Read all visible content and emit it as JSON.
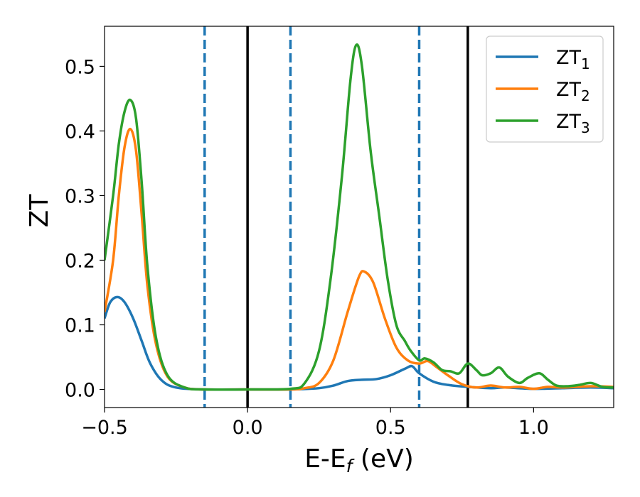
{
  "chart_data": {
    "type": "line",
    "title": "",
    "xlabel": "E-E",
    "xlabel_subscript": "f",
    "xlabel_unit": " (eV)",
    "ylabel": "ZT",
    "xlim": [
      -0.5,
      1.28
    ],
    "ylim": [
      -0.028,
      0.562
    ],
    "grid": false,
    "legend_position": "top-right",
    "x_ticks": [
      {
        "value": -0.5,
        "label": "−0.5"
      },
      {
        "value": 0.0,
        "label": "0.0"
      },
      {
        "value": 0.5,
        "label": "0.5"
      },
      {
        "value": 1.0,
        "label": "1.0"
      }
    ],
    "y_ticks": [
      {
        "value": 0.0,
        "label": "0.0"
      },
      {
        "value": 0.1,
        "label": "0.1"
      },
      {
        "value": 0.2,
        "label": "0.2"
      },
      {
        "value": 0.3,
        "label": "0.3"
      },
      {
        "value": 0.4,
        "label": "0.4"
      },
      {
        "value": 0.5,
        "label": "0.5"
      }
    ],
    "vlines": [
      {
        "x": -0.15,
        "style": "dashed",
        "color": "#1f77b4"
      },
      {
        "x": 0.0,
        "style": "solid",
        "color": "#000000"
      },
      {
        "x": 0.15,
        "style": "dashed",
        "color": "#1f77b4"
      },
      {
        "x": 0.6,
        "style": "dashed",
        "color": "#1f77b4"
      },
      {
        "x": 0.77,
        "style": "solid",
        "color": "#000000"
      }
    ],
    "series": [
      {
        "name": "ZT",
        "subscript": "1",
        "color": "#1f77b4",
        "points": [
          [
            -0.5,
            0.11
          ],
          [
            -0.48,
            0.135
          ],
          [
            -0.455,
            0.143
          ],
          [
            -0.43,
            0.135
          ],
          [
            -0.4,
            0.11
          ],
          [
            -0.37,
            0.075
          ],
          [
            -0.34,
            0.04
          ],
          [
            -0.3,
            0.014
          ],
          [
            -0.25,
            0.003
          ],
          [
            -0.15,
            0.0
          ],
          [
            0.0,
            0.0
          ],
          [
            0.15,
            0.0
          ],
          [
            0.25,
            0.002
          ],
          [
            0.3,
            0.006
          ],
          [
            0.35,
            0.013
          ],
          [
            0.4,
            0.015
          ],
          [
            0.45,
            0.016
          ],
          [
            0.5,
            0.022
          ],
          [
            0.55,
            0.032
          ],
          [
            0.575,
            0.036
          ],
          [
            0.6,
            0.025
          ],
          [
            0.65,
            0.012
          ],
          [
            0.7,
            0.007
          ],
          [
            0.77,
            0.004
          ],
          [
            0.85,
            0.002
          ],
          [
            0.9,
            0.003
          ],
          [
            1.0,
            0.001
          ],
          [
            1.1,
            0.002
          ],
          [
            1.2,
            0.003
          ],
          [
            1.28,
            0.002
          ]
        ]
      },
      {
        "name": "ZT",
        "subscript": "2",
        "color": "#ff7f0e",
        "points": [
          [
            -0.5,
            0.12
          ],
          [
            -0.47,
            0.2
          ],
          [
            -0.45,
            0.3
          ],
          [
            -0.43,
            0.375
          ],
          [
            -0.41,
            0.403
          ],
          [
            -0.39,
            0.37
          ],
          [
            -0.37,
            0.27
          ],
          [
            -0.35,
            0.16
          ],
          [
            -0.32,
            0.07
          ],
          [
            -0.28,
            0.02
          ],
          [
            -0.22,
            0.003
          ],
          [
            -0.15,
            0.0
          ],
          [
            0.0,
            0.0
          ],
          [
            0.15,
            0.0
          ],
          [
            0.2,
            0.002
          ],
          [
            0.25,
            0.01
          ],
          [
            0.3,
            0.045
          ],
          [
            0.35,
            0.12
          ],
          [
            0.39,
            0.175
          ],
          [
            0.41,
            0.182
          ],
          [
            0.44,
            0.165
          ],
          [
            0.48,
            0.11
          ],
          [
            0.52,
            0.065
          ],
          [
            0.56,
            0.045
          ],
          [
            0.6,
            0.04
          ],
          [
            0.63,
            0.044
          ],
          [
            0.66,
            0.035
          ],
          [
            0.7,
            0.022
          ],
          [
            0.75,
            0.008
          ],
          [
            0.8,
            0.003
          ],
          [
            0.85,
            0.006
          ],
          [
            0.9,
            0.003
          ],
          [
            0.95,
            0.004
          ],
          [
            1.0,
            0.001
          ],
          [
            1.05,
            0.004
          ],
          [
            1.1,
            0.003
          ],
          [
            1.2,
            0.005
          ],
          [
            1.28,
            0.004
          ]
        ]
      },
      {
        "name": "ZT",
        "subscript": "3",
        "color": "#2ca02c",
        "points": [
          [
            -0.5,
            0.2
          ],
          [
            -0.47,
            0.3
          ],
          [
            -0.45,
            0.38
          ],
          [
            -0.43,
            0.43
          ],
          [
            -0.41,
            0.448
          ],
          [
            -0.39,
            0.42
          ],
          [
            -0.37,
            0.32
          ],
          [
            -0.35,
            0.19
          ],
          [
            -0.32,
            0.08
          ],
          [
            -0.28,
            0.022
          ],
          [
            -0.22,
            0.003
          ],
          [
            -0.15,
            0.0
          ],
          [
            0.0,
            0.0
          ],
          [
            0.15,
            0.001
          ],
          [
            0.2,
            0.01
          ],
          [
            0.25,
            0.06
          ],
          [
            0.29,
            0.17
          ],
          [
            0.33,
            0.33
          ],
          [
            0.36,
            0.48
          ],
          [
            0.38,
            0.533
          ],
          [
            0.4,
            0.5
          ],
          [
            0.43,
            0.37
          ],
          [
            0.46,
            0.27
          ],
          [
            0.49,
            0.17
          ],
          [
            0.52,
            0.1
          ],
          [
            0.55,
            0.075
          ],
          [
            0.57,
            0.06
          ],
          [
            0.6,
            0.045
          ],
          [
            0.62,
            0.048
          ],
          [
            0.65,
            0.042
          ],
          [
            0.68,
            0.03
          ],
          [
            0.71,
            0.028
          ],
          [
            0.74,
            0.025
          ],
          [
            0.77,
            0.04
          ],
          [
            0.8,
            0.03
          ],
          [
            0.82,
            0.022
          ],
          [
            0.85,
            0.025
          ],
          [
            0.88,
            0.034
          ],
          [
            0.91,
            0.02
          ],
          [
            0.95,
            0.01
          ],
          [
            0.98,
            0.018
          ],
          [
            1.02,
            0.025
          ],
          [
            1.05,
            0.015
          ],
          [
            1.08,
            0.006
          ],
          [
            1.12,
            0.005
          ],
          [
            1.16,
            0.007
          ],
          [
            1.2,
            0.01
          ],
          [
            1.24,
            0.004
          ],
          [
            1.28,
            0.003
          ]
        ]
      }
    ]
  }
}
